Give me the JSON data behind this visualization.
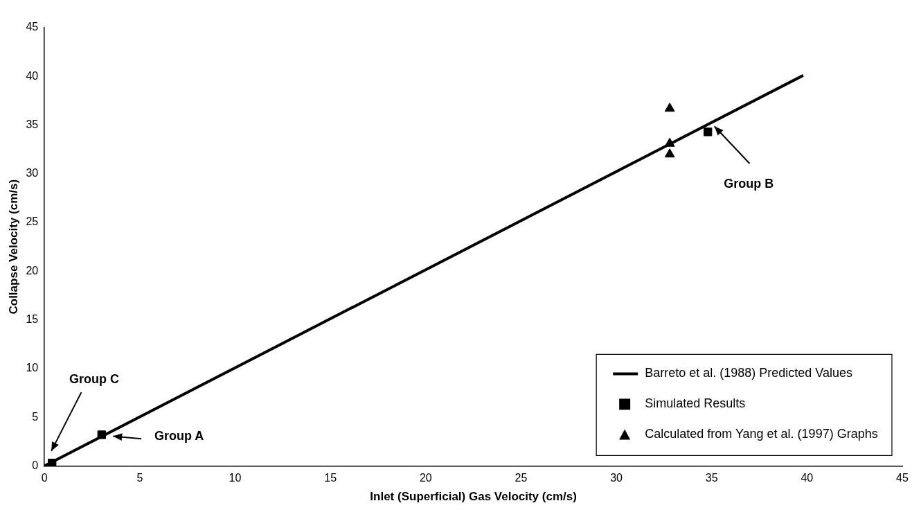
{
  "chart_data": {
    "type": "scatter",
    "xlabel": "Inlet (Superficial) Gas Velocity (cm/s)",
    "ylabel": "Collapse Velocity (cm/s)",
    "xlim": [
      0,
      45
    ],
    "xticks": [
      0,
      5,
      10,
      15,
      20,
      25,
      30,
      35,
      40,
      45
    ],
    "ylim": [
      0,
      45
    ],
    "yticks": [
      0,
      5,
      10,
      15,
      20,
      25,
      30,
      35,
      40,
      45
    ],
    "grid": false,
    "legend": "bottom right",
    "series": [
      {
        "name": "Barreto et al. (1988) Predicted Values",
        "type": "line",
        "color": "#000000",
        "marker": "none",
        "line_style": "solid",
        "x": [
          0,
          39.8
        ],
        "values": [
          0,
          40.1
        ]
      },
      {
        "name": "Simulated Results",
        "type": "scatter",
        "color": "#000000",
        "marker": "square",
        "x": [
          0.4,
          3.0,
          34.8
        ],
        "values": [
          0.3,
          3.2,
          34.3
        ]
      },
      {
        "name": "Calculated from Yang et al. (1997) Graphs",
        "type": "scatter",
        "color": "#000000",
        "marker": "triangle",
        "x": [
          32.8,
          32.8,
          32.8
        ],
        "values": [
          36.7,
          33.1,
          32.0
        ]
      }
    ],
    "annotations": [
      "Group C",
      "Group A",
      "Group B"
    ]
  }
}
